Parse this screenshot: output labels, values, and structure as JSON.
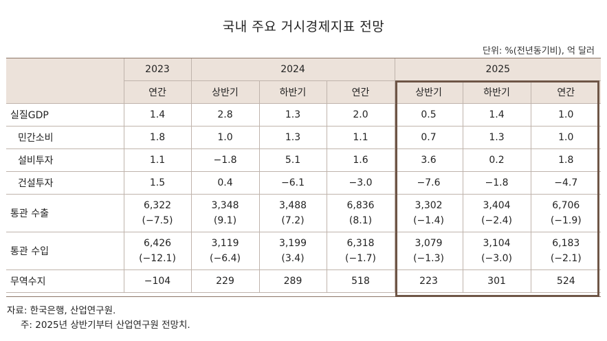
{
  "title": "국내 주요 거시경제지표 전망",
  "unit_note": "단위: %(전년동기비), 억 달러",
  "header": {
    "years": [
      "2023",
      "2024",
      "2025"
    ],
    "periods": [
      "연간",
      "상반기",
      "하반기",
      "연간",
      "상반기",
      "하반기",
      "연간"
    ]
  },
  "rows": [
    {
      "label": "실질GDP",
      "values": [
        "1.4",
        "2.8",
        "1.3",
        "2.0",
        "0.5",
        "1.4",
        "1.0"
      ]
    },
    {
      "label": "민간소비",
      "values": [
        "1.8",
        "1.0",
        "1.3",
        "1.1",
        "0.7",
        "1.3",
        "1.0"
      ]
    },
    {
      "label": "설비투자",
      "values": [
        "1.1",
        "−1.8",
        "5.1",
        "1.6",
        "3.6",
        "0.2",
        "1.8"
      ]
    },
    {
      "label": "건설투자",
      "values": [
        "1.5",
        "0.4",
        "−6.1",
        "−3.0",
        "−7.6",
        "−1.8",
        "−4.7"
      ]
    },
    {
      "label": "통관 수출",
      "values": [
        "6,322",
        "3,348",
        "3,488",
        "6,836",
        "3,302",
        "3,404",
        "6,706"
      ],
      "growth": [
        "(−7.5)",
        "(9.1)",
        "(7.2)",
        "(8.1)",
        "(−1.4)",
        "(−2.4)",
        "(−1.9)"
      ]
    },
    {
      "label": "통관 수입",
      "values": [
        "6,426",
        "3,119",
        "3,199",
        "6,318",
        "3,079",
        "3,104",
        "6,183"
      ],
      "growth": [
        "(−12.1)",
        "(−6.4)",
        "(3.4)",
        "(−1.7)",
        "(−1.3)",
        "(−3.0)",
        "(−2.1)"
      ]
    },
    {
      "label": "무역수지",
      "values": [
        "−104",
        "229",
        "289",
        "518",
        "223",
        "301",
        "524"
      ]
    }
  ],
  "source": "자료: 한국은행, 산업연구원.",
  "note": "주: 2025년 상반기부터 산업연구원 전망치.",
  "colors": {
    "header_bg": "#ece2da",
    "highlight_border": "#6e5546",
    "grid": "#bfb3ab"
  }
}
